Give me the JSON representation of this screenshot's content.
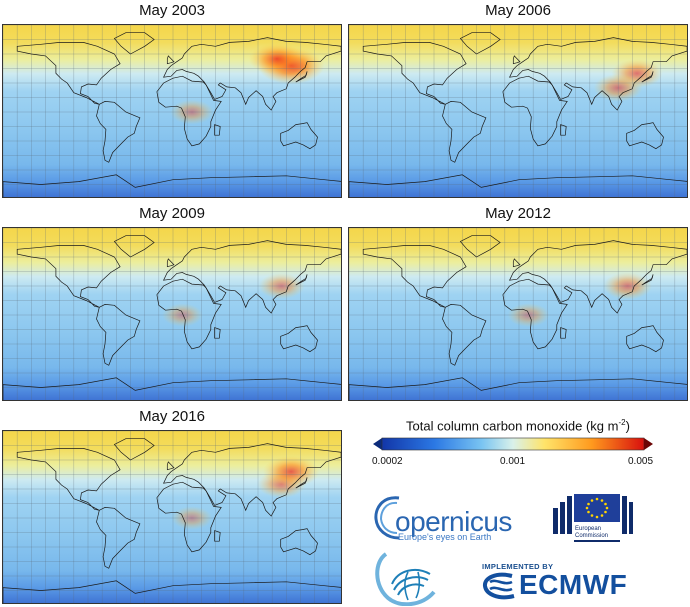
{
  "panels": [
    {
      "title": "May 2003",
      "hotspots": [
        {
          "lon": 125,
          "lat": 48,
          "level": 0.9
        },
        {
          "lon": 110,
          "lat": 55,
          "level": 0.7
        },
        {
          "lon": 20,
          "lat": 0,
          "level": 0.45
        }
      ]
    },
    {
      "title": "May 2006",
      "hotspots": [
        {
          "lon": 125,
          "lat": 40,
          "level": 0.6
        },
        {
          "lon": 105,
          "lat": 25,
          "level": 0.55
        }
      ]
    },
    {
      "title": "May 2009",
      "hotspots": [
        {
          "lon": 115,
          "lat": 30,
          "level": 0.5
        },
        {
          "lon": 10,
          "lat": 0,
          "level": 0.4
        }
      ]
    },
    {
      "title": "May 2012",
      "hotspots": [
        {
          "lon": 115,
          "lat": 30,
          "level": 0.55
        },
        {
          "lon": 10,
          "lat": 0,
          "level": 0.42
        }
      ]
    },
    {
      "title": "May 2016",
      "hotspots": [
        {
          "lon": 115,
          "lat": 35,
          "level": 0.55
        },
        {
          "lon": 125,
          "lat": 48,
          "level": 0.7
        },
        {
          "lon": 20,
          "lat": 0,
          "level": 0.4
        }
      ]
    }
  ],
  "legend": {
    "title": "Total column carbon monoxide (kg m",
    "title_exp": "-2",
    "title_close": ")",
    "ticks": [
      "0.0002",
      "0.001",
      "0.005"
    ],
    "scale": "log",
    "range": [
      0.0002,
      0.005
    ],
    "colors": [
      "#08306b",
      "#1f5fd6",
      "#6fb8f0",
      "#d6efe9",
      "#ffe36b",
      "#ff9a1e",
      "#e01010",
      "#6b0505"
    ]
  },
  "logos": {
    "copernicus_word": "opernicus",
    "copernicus_tagline": "Europe's eyes on Earth",
    "eu_line1": "European",
    "eu_line2": "Commission",
    "implemented_by": "IMPLEMENTED BY",
    "ecmwf": "ECMWF"
  }
}
